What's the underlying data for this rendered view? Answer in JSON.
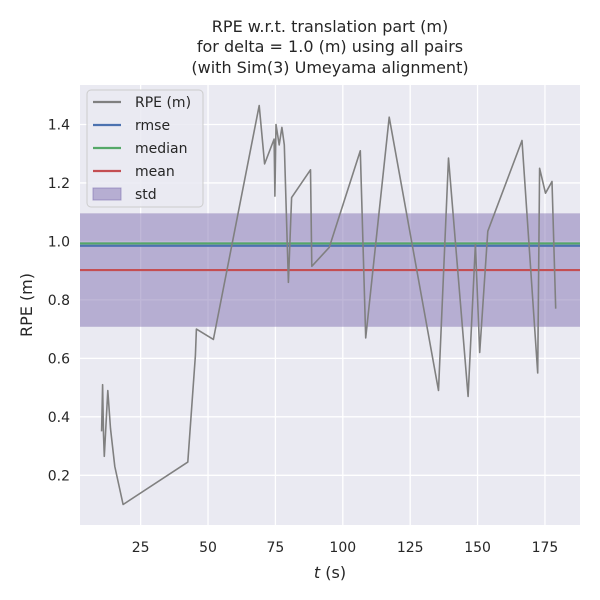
{
  "chart_data": {
    "type": "line",
    "title": [
      "RPE w.r.t. translation part (m)",
      "for delta = 1.0 (m) using all pairs",
      "(with Sim(3) Umeyama alignment)"
    ],
    "xlabel_italic": "t",
    "xlabel_rest": " (s)",
    "ylabel": "RPE (m)",
    "xlim": [
      2.5,
      188
    ],
    "ylim": [
      0.03,
      1.535
    ],
    "xticks": [
      25,
      50,
      75,
      100,
      125,
      150,
      175
    ],
    "yticks": [
      0.2,
      0.4,
      0.6,
      0.8,
      1.0,
      1.2,
      1.4
    ],
    "ytick_labels": [
      "0.2",
      "0.4",
      "0.6",
      "0.8",
      "1.0",
      "1.2",
      "1.4"
    ],
    "grid": true,
    "legend_position": "upper-left",
    "series": [
      {
        "name": "RPE (m)",
        "color": "#808080",
        "x": [
          10.5,
          10.9,
          11.2,
          11.5,
          12.8,
          13.8,
          15.4,
          18.5,
          42.5,
          45.3,
          45.7,
          52,
          69,
          71,
          74.5,
          74.8,
          75.2,
          76.4,
          77.4,
          78.3,
          79.8,
          81,
          88,
          88.5,
          95,
          106.5,
          108.5,
          117.2,
          135.5,
          139.2,
          146.5,
          149.2,
          150.8,
          153.8,
          166.5,
          172.3,
          173,
          175.2,
          177.6,
          179
        ]
      },
      {
        "y": [
          0.35,
          0.51,
          0.34,
          0.265,
          0.49,
          0.36,
          0.23,
          0.1,
          0.245,
          0.61,
          0.7,
          0.665,
          1.465,
          1.265,
          1.35,
          1.155,
          1.4,
          1.33,
          1.39,
          1.33,
          0.86,
          1.15,
          1.245,
          0.915,
          0.98,
          1.31,
          0.67,
          1.425,
          0.49,
          1.285,
          0.47,
          0.99,
          0.62,
          1.035,
          1.345,
          0.55,
          1.25,
          1.165,
          1.205,
          0.77
        ]
      }
    ],
    "stats": {
      "rmse": 0.985,
      "median": 0.993,
      "mean": 0.902,
      "std": 0.194,
      "rmse_color": "#4c72b0",
      "median_color": "#55a868",
      "mean_color": "#c44e52",
      "std_color": "#8172b2"
    },
    "legend": [
      {
        "key": "rpe",
        "label": "RPE (m)",
        "color": "#808080",
        "kind": "line"
      },
      {
        "key": "rmse",
        "label": "rmse",
        "color": "#4c72b0",
        "kind": "line"
      },
      {
        "key": "median",
        "label": "median",
        "color": "#55a868",
        "kind": "line"
      },
      {
        "key": "mean",
        "label": "mean",
        "color": "#c44e52",
        "kind": "line"
      },
      {
        "key": "std",
        "label": "std",
        "color": "#8172b2",
        "kind": "patch"
      }
    ]
  }
}
